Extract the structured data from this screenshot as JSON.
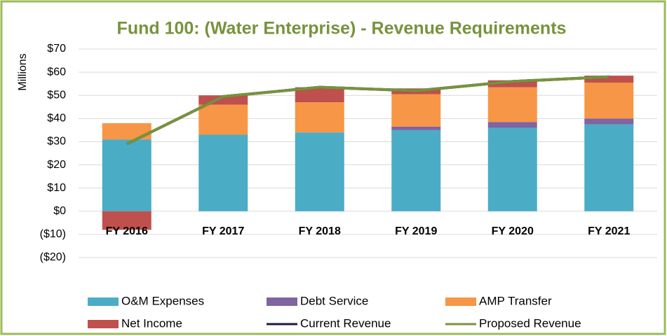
{
  "chart_data": {
    "type": "stacked_bar_line",
    "title": "Fund 100: (Water Enterprise) - Revenue Requirements",
    "y_label": "Millions",
    "categories": [
      "FY 2016",
      "FY 2017",
      "FY 2018",
      "FY 2019",
      "FY 2020",
      "FY 2021"
    ],
    "series": [
      {
        "name": "O&M Expenses",
        "kind": "bar",
        "color": "#4bacc6",
        "values": [
          31,
          33,
          34,
          35,
          36,
          37.5
        ]
      },
      {
        "name": "Debt Service",
        "kind": "bar",
        "color": "#8064a2",
        "values": [
          0,
          0,
          0,
          1.5,
          2.5,
          2.5
        ]
      },
      {
        "name": "AMP Transfer",
        "kind": "bar",
        "color": "#f79646",
        "values": [
          7,
          13,
          13,
          14,
          15,
          15.5
        ]
      },
      {
        "name": "Net Income",
        "kind": "bar",
        "color": "#c0504d",
        "values": [
          -8,
          4,
          6.5,
          2.5,
          3,
          3
        ]
      },
      {
        "name": "Current Revenue",
        "kind": "line",
        "color": "#1f1a3a",
        "values": [
          29,
          49.5,
          53.5,
          52,
          56,
          58
        ]
      },
      {
        "name": "Proposed Revenue",
        "kind": "line",
        "color": "#77933c",
        "values": [
          29,
          49.5,
          53.5,
          52,
          56,
          58
        ]
      }
    ],
    "ylim": [
      -20,
      70
    ],
    "yticks": [
      {
        "value": -20,
        "label": "($20)"
      },
      {
        "value": -10,
        "label": "($10)"
      },
      {
        "value": 0,
        "label": "$0"
      },
      {
        "value": 10,
        "label": "$10"
      },
      {
        "value": 20,
        "label": "$20"
      },
      {
        "value": 30,
        "label": "$30"
      },
      {
        "value": 40,
        "label": "$40"
      },
      {
        "value": 50,
        "label": "$50"
      },
      {
        "value": 60,
        "label": "$60"
      },
      {
        "value": 70,
        "label": "$70"
      }
    ],
    "grid": true,
    "legend": "bottom"
  }
}
